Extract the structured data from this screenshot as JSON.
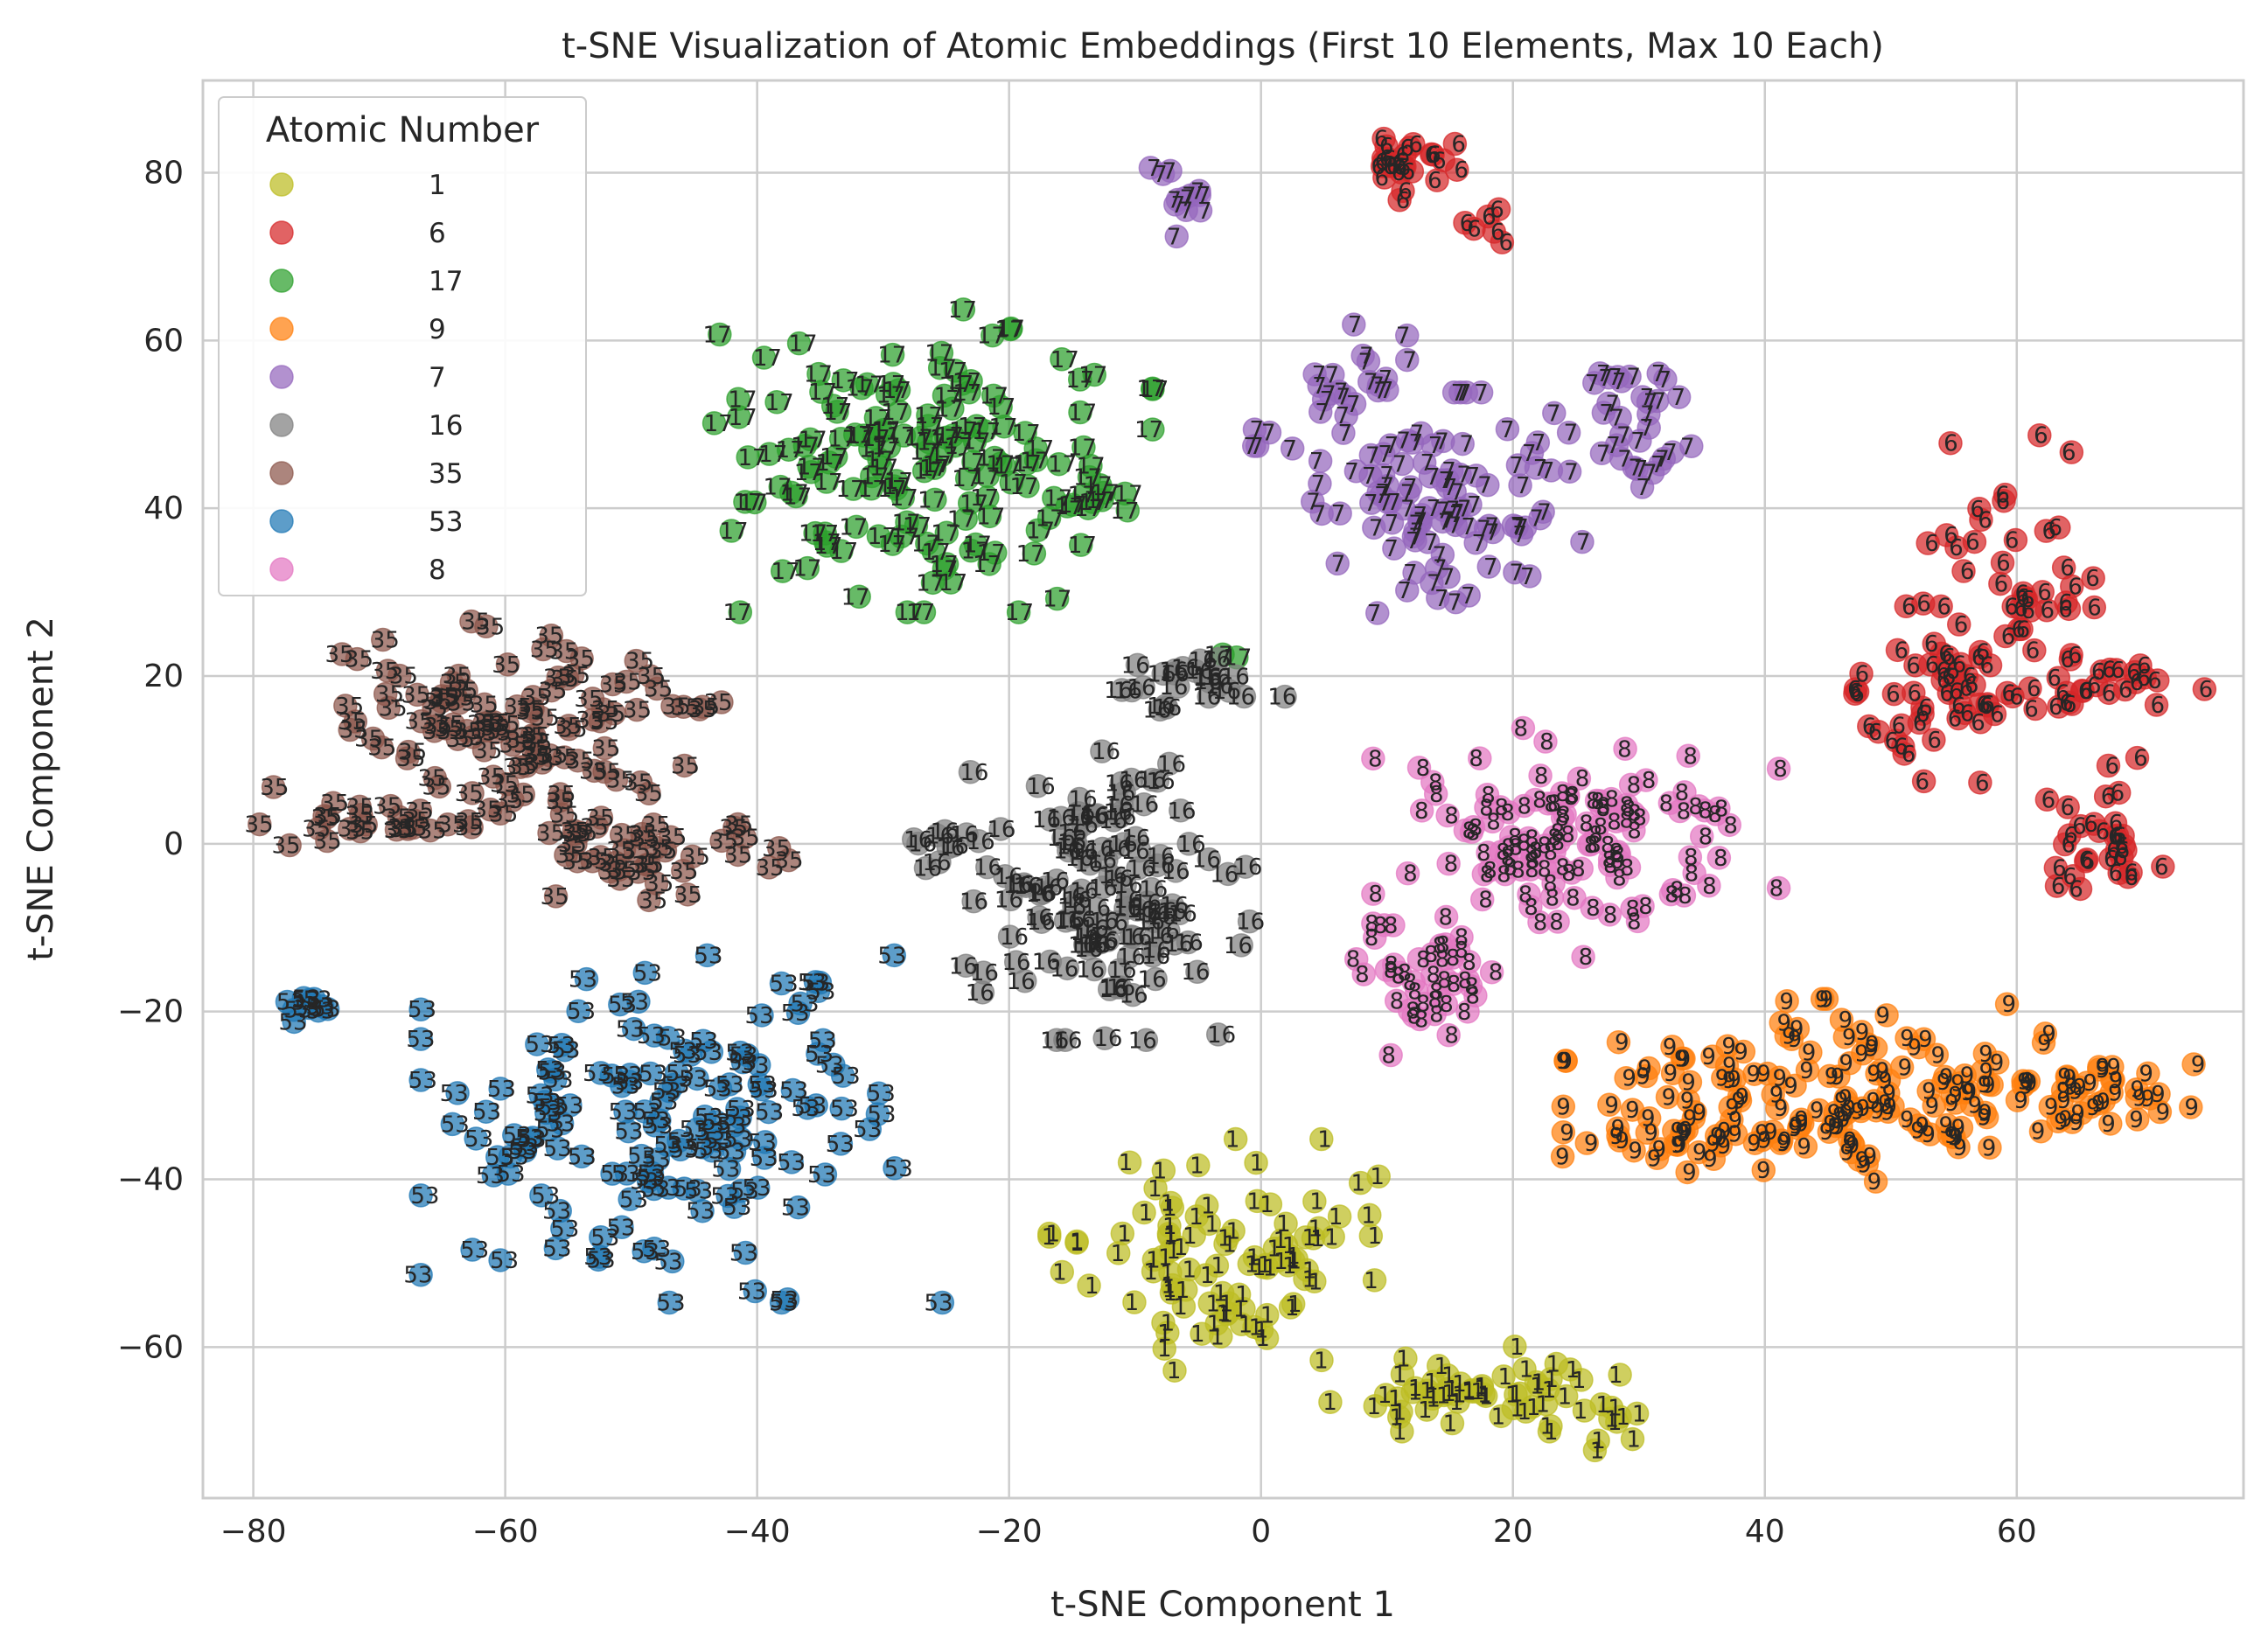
{
  "chart_data": {
    "type": "scatter",
    "title": "t-SNE Visualization of Atomic Embeddings (First 10 Elements, Max 10 Each)",
    "xlabel": "t-SNE Component 1",
    "ylabel": "t-SNE Component 2",
    "xlim": [
      -84,
      78
    ],
    "ylim": [
      -78,
      91
    ],
    "x_ticks": [
      "−80",
      "−60",
      "−40",
      "−20",
      "0",
      "20",
      "40",
      "60"
    ],
    "y_ticks": [
      "−60",
      "−40",
      "−20",
      "0",
      "20",
      "40",
      "60",
      "80"
    ],
    "x_tick_values": [
      -80,
      -60,
      -40,
      -20,
      0,
      20,
      40,
      60
    ],
    "y_tick_values": [
      -60,
      -40,
      -20,
      0,
      20,
      40,
      60,
      80
    ],
    "grid": true,
    "legend": {
      "title": "Atomic Number",
      "position": "top-left",
      "entries": [
        "1",
        "6",
        "17",
        "9",
        "7",
        "16",
        "35",
        "53",
        "8"
      ]
    },
    "series": [
      {
        "name": "1",
        "color": "#bcbd22",
        "clusters": [
          {
            "cx": -3,
            "cy": -49,
            "sx": 6,
            "sy": 6,
            "n": 95
          },
          {
            "cx": 17,
            "cy": -65,
            "sx": 5,
            "sy": 2.2,
            "n": 55
          },
          {
            "cx": 28,
            "cy": -69,
            "sx": 1.2,
            "sy": 2,
            "n": 8
          }
        ]
      },
      {
        "name": "6",
        "color": "#d62728",
        "clusters": [
          {
            "cx": 12.5,
            "cy": 81,
            "sx": 2,
            "sy": 2,
            "n": 25
          },
          {
            "cx": 18,
            "cy": 74,
            "sx": 0.8,
            "sy": 1,
            "n": 6
          },
          {
            "cx": 60,
            "cy": 28,
            "sx": 5,
            "sy": 9,
            "n": 60
          },
          {
            "cx": 53,
            "cy": 17,
            "sx": 3.5,
            "sy": 3.5,
            "n": 35
          },
          {
            "cx": 67,
            "cy": 0,
            "sx": 2,
            "sy": 5,
            "n": 30
          },
          {
            "cx": 68,
            "cy": 19,
            "sx": 3,
            "sy": 1.5,
            "n": 15
          }
        ]
      },
      {
        "name": "17",
        "color": "#2ca02c",
        "clusters": [
          {
            "cx": -27,
            "cy": 46,
            "sx": 8,
            "sy": 8,
            "n": 150
          },
          {
            "cx": -13,
            "cy": 41,
            "sx": 2,
            "sy": 1,
            "n": 8
          },
          {
            "cx": -3,
            "cy": 23,
            "sx": 0.5,
            "sy": 0.5,
            "n": 2
          }
        ]
      },
      {
        "name": "9",
        "color": "#ff7f0e",
        "clusters": [
          {
            "cx": 47,
            "cy": -30,
            "sx": 10,
            "sy": 5,
            "n": 150
          },
          {
            "cx": 66,
            "cy": -30,
            "sx": 3.5,
            "sy": 2,
            "n": 30
          },
          {
            "cx": 32,
            "cy": -36,
            "sx": 3.5,
            "sy": 1.5,
            "n": 18
          }
        ]
      },
      {
        "name": "7",
        "color": "#9467bd",
        "clusters": [
          {
            "cx": -6.5,
            "cy": 77,
            "sx": 2,
            "sy": 2,
            "n": 12
          },
          {
            "cx": 14,
            "cy": 40,
            "sx": 5,
            "sy": 6,
            "n": 100
          },
          {
            "cx": 7,
            "cy": 55,
            "sx": 2,
            "sy": 3,
            "n": 20
          },
          {
            "cx": 30,
            "cy": 50,
            "sx": 2,
            "sy": 5,
            "n": 30
          },
          {
            "cx": 1,
            "cy": 48,
            "sx": 0.8,
            "sy": 1,
            "n": 4
          }
        ]
      },
      {
        "name": "16",
        "color": "#7f7f7f",
        "clusters": [
          {
            "cx": -12,
            "cy": -5,
            "sx": 5,
            "sy": 8,
            "n": 130
          },
          {
            "cx": -5,
            "cy": 19,
            "sx": 3,
            "sy": 2,
            "n": 25
          },
          {
            "cx": -26,
            "cy": 0,
            "sx": 1,
            "sy": 2,
            "n": 8
          }
        ]
      },
      {
        "name": "35",
        "color": "#8c564b",
        "clusters": [
          {
            "cx": -60,
            "cy": 15,
            "sx": 8,
            "sy": 5,
            "n": 110
          },
          {
            "cx": -49,
            "cy": -1,
            "sx": 5,
            "sy": 2.5,
            "n": 40
          },
          {
            "cx": -68,
            "cy": 2.5,
            "sx": 5,
            "sy": 1.5,
            "n": 25
          }
        ]
      },
      {
        "name": "53",
        "color": "#1f77b4",
        "clusters": [
          {
            "cx": -46,
            "cy": -34,
            "sx": 9,
            "sy": 9,
            "n": 150
          },
          {
            "cx": -76,
            "cy": -19,
            "sx": 1,
            "sy": 1,
            "n": 10
          }
        ]
      },
      {
        "name": "8",
        "color": "#e377c2",
        "clusters": [
          {
            "cx": 25,
            "cy": 0,
            "sx": 7,
            "sy": 6,
            "n": 120
          },
          {
            "cx": 13,
            "cy": -16,
            "sx": 3,
            "sy": 4,
            "n": 40
          }
        ]
      }
    ]
  }
}
